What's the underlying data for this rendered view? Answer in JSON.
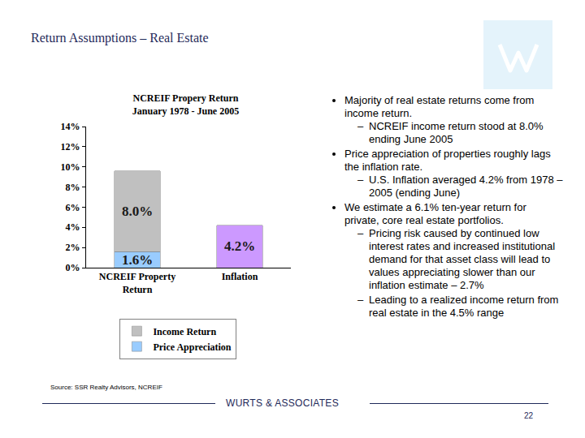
{
  "slide": {
    "title": "Return Assumptions – Real Estate",
    "bullets": [
      {
        "text": "Majority of real estate returns come from income return.",
        "sub": [
          "NCREIF income return stood at 8.0% ending June 2005"
        ]
      },
      {
        "text": "Price appreciation of properties roughly lags the inflation rate.",
        "sub": [
          "U.S. Inflation averaged 4.2% from 1978 – 2005 (ending June)"
        ]
      },
      {
        "text": "We estimate a 6.1% ten-year return for private, core real estate portfolios.",
        "sub": [
          "Pricing risk caused by continued low interest rates and increased institutional demand for that asset class will lead to values appreciating slower than our inflation estimate – 2.7%",
          "Leading to a realized income return from real estate in the 4.5% range"
        ]
      }
    ],
    "source": "Source: SSR Realty Advisors, NCREIF",
    "footer": "WURTS & ASSOCIATES",
    "page": "22"
  },
  "chart_data": {
    "type": "bar",
    "title": "NCREIF Propery Return",
    "subtitle": "January 1978 - June 2005",
    "categories": [
      "NCREIF Property Return",
      "Inflation"
    ],
    "stacked": true,
    "data_labels": true,
    "legend": "bottom",
    "grid": false,
    "series": [
      {
        "name": "Price Appreciation",
        "color": "#99ccff",
        "values": [
          1.6,
          null
        ],
        "value_labels": [
          "1.6%",
          null
        ]
      },
      {
        "name": "Income Return",
        "color": "#c0c0c0",
        "values": [
          8.0,
          null
        ],
        "value_labels": [
          "8.0%",
          null
        ]
      },
      {
        "color": "#cc99ff",
        "values": [
          null,
          4.2
        ],
        "value_labels": [
          null,
          "4.2%"
        ]
      }
    ],
    "ylim": [
      0,
      14
    ],
    "yticks": [
      {
        "value": 0,
        "label": "0%"
      },
      {
        "value": 2,
        "label": "2%"
      },
      {
        "value": 4,
        "label": "4%"
      },
      {
        "value": 6,
        "label": "6%"
      },
      {
        "value": 8,
        "label": "8%"
      },
      {
        "value": 10,
        "label": "10%"
      },
      {
        "value": 12,
        "label": "12%"
      },
      {
        "value": 14,
        "label": "14%"
      }
    ]
  }
}
